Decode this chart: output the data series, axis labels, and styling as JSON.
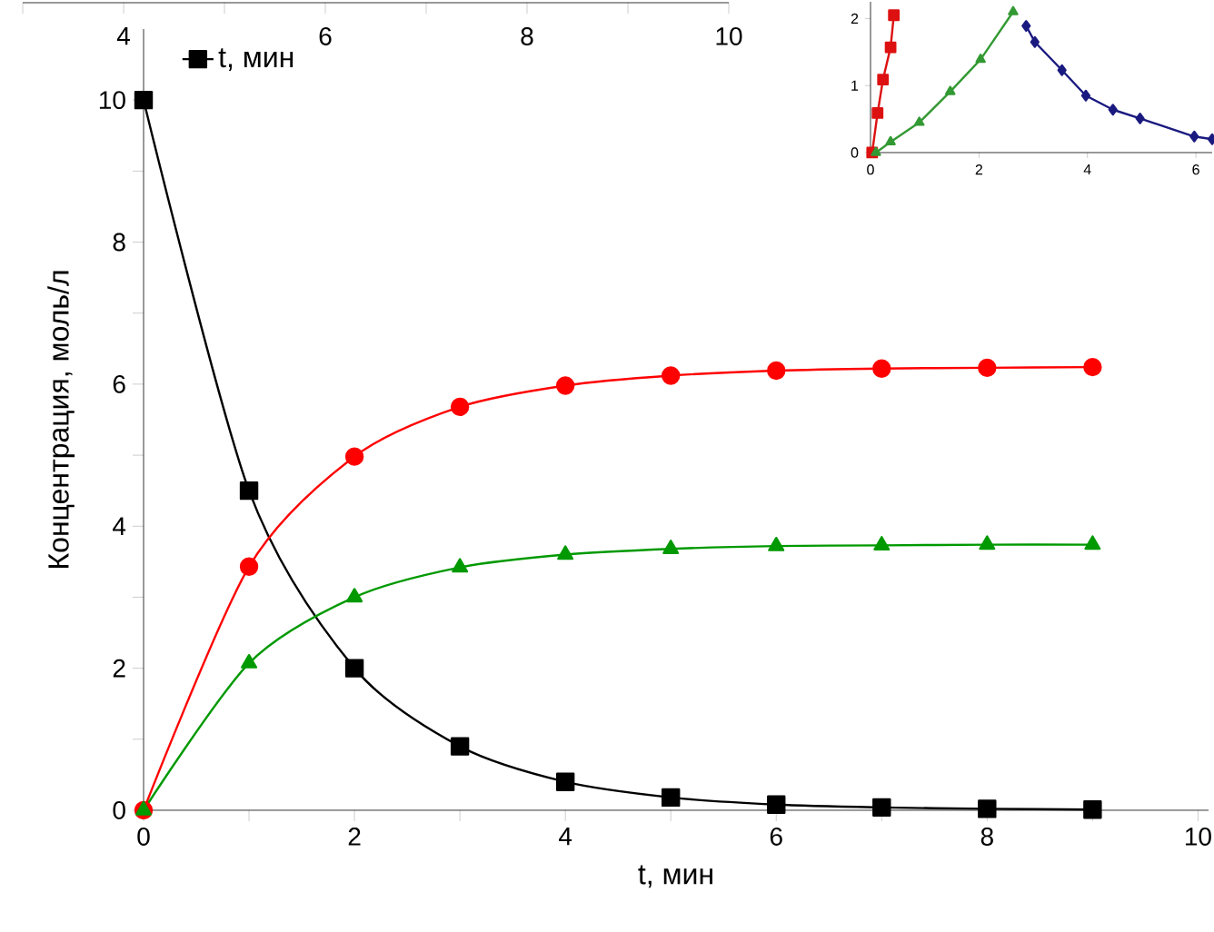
{
  "chart_data": [
    {
      "type": "line",
      "xlabel": "t, мин",
      "ylabel": "Концентрация, моль/л",
      "legend": "top left",
      "x": [
        0,
        1,
        2,
        3,
        4,
        5,
        6,
        7,
        8,
        9
      ],
      "xlim": [
        0,
        10.1
      ],
      "ylim": [
        0,
        11
      ],
      "xticks": [
        0,
        {
          "value": 1,
          "label": null
        },
        2,
        {
          "value": 3,
          "label": null
        },
        4,
        {
          "value": 5,
          "label": null
        },
        6,
        {
          "value": 7,
          "label": null
        },
        8,
        {
          "value": 9,
          "label": null
        },
        10
      ],
      "yticks": [
        0,
        {
          "value": 1,
          "label": null
        },
        2,
        {
          "value": 3,
          "label": null
        },
        4,
        {
          "value": 5,
          "label": null
        },
        6,
        {
          "value": 7,
          "label": null
        },
        8,
        {
          "value": 9,
          "label": null
        },
        10
      ],
      "x2lim": [
        3,
        10
      ],
      "x2ticks": [
        {
          "value": 3,
          "label": null
        },
        4,
        {
          "value": 5,
          "label": null
        },
        6,
        {
          "value": 7,
          "label": null
        },
        8,
        {
          "value": 9,
          "label": null
        },
        10
      ],
      "series": [
        {
          "name": "t, мин",
          "color": "#000000",
          "marker": "square",
          "line_style": "solid",
          "values": [
            10,
            4.5,
            2.0,
            0.9,
            0.4,
            0.18,
            0.08,
            0.04,
            0.02,
            0.01
          ]
        },
        {
          "color": "#ff0000",
          "marker": "circle",
          "line_style": "solid",
          "values": [
            0,
            3.43,
            4.98,
            5.68,
            5.98,
            6.12,
            6.19,
            6.22,
            6.23,
            6.24
          ]
        },
        {
          "color": "#009900",
          "marker": "triangle",
          "line_style": "solid",
          "values": [
            0,
            2.07,
            3.0,
            3.42,
            3.6,
            3.68,
            3.72,
            3.73,
            3.74,
            3.74
          ]
        }
      ]
    },
    {
      "type": "line",
      "xlim": [
        0,
        6.3
      ],
      "ylim": [
        0,
        2.25
      ],
      "xticks": [
        0,
        2,
        4,
        6
      ],
      "yticks": [
        0,
        1,
        2
      ],
      "series": [
        {
          "color": "#dd1111",
          "marker": "square",
          "line_style": "solid",
          "x": [
            0.03,
            0.13,
            0.23,
            0.37,
            0.43
          ],
          "values": [
            0,
            0.59,
            1.09,
            1.57,
            2.05
          ]
        },
        {
          "color": "#339933",
          "marker": "triangle",
          "line_style": "solid",
          "x": [
            0.1,
            0.37,
            0.9,
            1.47,
            2.03,
            2.63
          ],
          "values": [
            0,
            0.16,
            0.45,
            0.91,
            1.39,
            2.1
          ]
        },
        {
          "color": "#1a1a80",
          "marker": "diamond",
          "line_style": "solid",
          "x": [
            2.87,
            3.03,
            3.53,
            3.97,
            4.47,
            4.97,
            5.97,
            6.3
          ],
          "values": [
            1.89,
            1.65,
            1.23,
            0.85,
            0.64,
            0.51,
            0.24,
            0.2
          ]
        }
      ]
    }
  ]
}
